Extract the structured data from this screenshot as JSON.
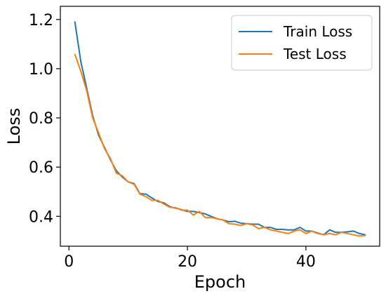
{
  "chart_data": {
    "type": "line",
    "title": "",
    "xlabel": "Epoch",
    "ylabel": "Loss",
    "xlim": [
      -1.45,
      52.45
    ],
    "ylim": [
      0.2785,
      1.2535
    ],
    "xticks": [
      0,
      20,
      40
    ],
    "yticks": [
      0.4,
      0.6,
      0.8,
      1.0,
      1.2
    ],
    "xtick_labels": [
      "0",
      "20",
      "40"
    ],
    "ytick_labels": [
      "0.4",
      "0.6",
      "0.8",
      "1.0",
      "1.2"
    ],
    "legend_position": "top-right",
    "grid": false,
    "x": [
      1,
      2,
      3,
      4,
      5,
      6,
      7,
      8,
      9,
      10,
      11,
      12,
      13,
      14,
      15,
      16,
      17,
      18,
      19,
      20,
      21,
      22,
      23,
      24,
      25,
      26,
      27,
      28,
      29,
      30,
      31,
      32,
      33,
      34,
      35,
      36,
      37,
      38,
      39,
      40,
      41,
      42,
      43,
      44,
      45,
      46,
      47,
      48,
      49,
      50
    ],
    "series": [
      {
        "name": "Train Loss",
        "color": "#1f77b4",
        "values": [
          1.19,
          1.03,
          0.92,
          0.81,
          0.73,
          0.68,
          0.63,
          0.585,
          0.56,
          0.54,
          0.533,
          0.492,
          0.49,
          0.475,
          0.46,
          0.455,
          0.44,
          0.433,
          0.427,
          0.42,
          0.42,
          0.415,
          0.41,
          0.4,
          0.39,
          0.385,
          0.378,
          0.38,
          0.372,
          0.37,
          0.368,
          0.368,
          0.355,
          0.355,
          0.347,
          0.347,
          0.345,
          0.345,
          0.355,
          0.34,
          0.34,
          0.332,
          0.325,
          0.345,
          0.335,
          0.335,
          0.337,
          0.34,
          0.33,
          0.325
        ]
      },
      {
        "name": "Test Loss",
        "color": "#ff7f0e",
        "values": [
          1.058,
          0.99,
          0.91,
          0.8,
          0.74,
          0.675,
          0.635,
          0.575,
          0.565,
          0.54,
          0.53,
          0.49,
          0.48,
          0.465,
          0.465,
          0.45,
          0.437,
          0.435,
          0.425,
          0.425,
          0.405,
          0.42,
          0.395,
          0.395,
          0.39,
          0.385,
          0.37,
          0.368,
          0.363,
          0.37,
          0.365,
          0.35,
          0.355,
          0.345,
          0.34,
          0.335,
          0.33,
          0.34,
          0.345,
          0.33,
          0.34,
          0.33,
          0.325,
          0.33,
          0.325,
          0.335,
          0.33,
          0.325,
          0.32,
          0.322
        ]
      }
    ]
  }
}
